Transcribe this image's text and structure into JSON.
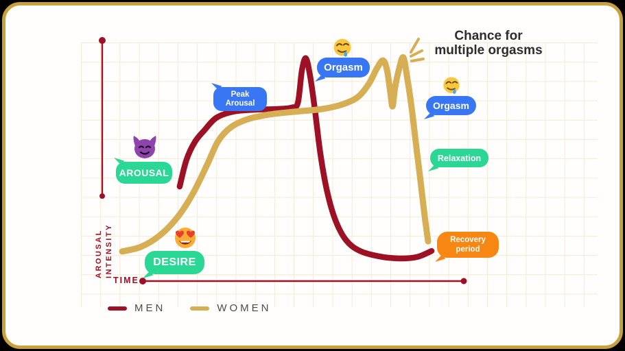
{
  "title": "Chance for multiple orgasms",
  "title_lines": [
    "Chance for",
    "multiple orgasms"
  ],
  "axes": {
    "y_label_lines": [
      "AROUSAL",
      "INTENSITY"
    ],
    "x_label": "TIME"
  },
  "legend": [
    {
      "label": "MEN",
      "color": "#9d1126"
    },
    {
      "label": "WOMEN",
      "color": "#d6ae53"
    }
  ],
  "bubbles": {
    "peak_arousal": {
      "lines": [
        "Peak",
        "Arousal"
      ],
      "color": "#3876f4"
    },
    "orgasm_men": {
      "label": "Orgasm",
      "color": "#3876f4"
    },
    "orgasm_women": {
      "label": "Orgasm",
      "color": "#3876f4"
    },
    "relaxation": {
      "label": "Relaxation",
      "color": "#2bd795"
    },
    "arousal": {
      "label": "AROUSAL",
      "color": "#2bd795"
    },
    "desire": {
      "label": "DESIRE",
      "color": "#2bd795"
    },
    "recovery": {
      "lines": [
        "Recovery",
        "period"
      ],
      "color": "#f78613"
    }
  },
  "icons": [
    "drooling-face-emoji",
    "drooling-face-emoji",
    "devil-face-emoji",
    "heart-eyes-emoji",
    "burst-sparkle"
  ],
  "colors": {
    "men_curve": "#9d1126",
    "women_curve": "#d6ae53",
    "frame_gold": "#c7a13c",
    "grid_line": "#f7e9d3",
    "bubble_blue": "#3876f4",
    "bubble_green": "#2bd795",
    "bubble_orange": "#f78613",
    "title_text": "#2e2d2b",
    "axis_red": "#9d1126"
  },
  "chart_data": {
    "type": "line",
    "title": "Chance for multiple orgasms",
    "xlabel": "TIME",
    "ylabel": "AROUSAL INTENSITY",
    "x_range": [
      0,
      100
    ],
    "y_range": [
      0,
      100
    ],
    "grid": true,
    "legend_position": "bottom-left",
    "series": [
      {
        "key": "men",
        "name": "MEN",
        "color": "#9d1126",
        "points": [
          [
            18.6,
            39.3
          ],
          [
            20.8,
            50.4
          ],
          [
            23.5,
            57.8
          ],
          [
            26.6,
            62.7
          ],
          [
            30.4,
            67.8
          ],
          [
            35.9,
            70.4
          ],
          [
            42.6,
            71.2
          ],
          [
            50.3,
            71.5
          ],
          [
            54.8,
            72.1
          ],
          [
            56.8,
            74.1
          ],
          [
            58.1,
            87.5
          ],
          [
            59.4,
            92.6
          ],
          [
            60.8,
            84.9
          ],
          [
            62.3,
            71.2
          ],
          [
            64.1,
            52.7
          ],
          [
            66.3,
            37.0
          ],
          [
            69.0,
            25.1
          ],
          [
            72.5,
            16.8
          ],
          [
            76.9,
            12.5
          ],
          [
            82.9,
            10.3
          ],
          [
            89.6,
            9.4
          ],
          [
            95.3,
            10.0
          ],
          [
            100.0,
            12.5
          ]
        ]
      },
      {
        "key": "women",
        "name": "WOMEN",
        "color": "#d6ae53",
        "points": [
          [
            0.0,
            12.3
          ],
          [
            6.0,
            14.2
          ],
          [
            12.0,
            18.8
          ],
          [
            17.7,
            26.2
          ],
          [
            22.8,
            36.2
          ],
          [
            27.5,
            48.4
          ],
          [
            31.0,
            58.1
          ],
          [
            35.0,
            63.8
          ],
          [
            40.4,
            67.2
          ],
          [
            47.5,
            69.2
          ],
          [
            55.9,
            70.4
          ],
          [
            64.7,
            71.5
          ],
          [
            71.4,
            73.5
          ],
          [
            76.3,
            76.6
          ],
          [
            79.8,
            82.1
          ],
          [
            82.3,
            88.3
          ],
          [
            84.3,
            91.7
          ],
          [
            85.6,
            87.7
          ],
          [
            86.7,
            78.3
          ],
          [
            87.4,
            72.6
          ],
          [
            88.2,
            80.3
          ],
          [
            89.6,
            88.6
          ],
          [
            90.9,
            92.9
          ],
          [
            92.2,
            84.0
          ],
          [
            93.6,
            71.8
          ],
          [
            95.1,
            55.6
          ],
          [
            96.5,
            41.0
          ],
          [
            97.8,
            26.8
          ],
          [
            98.9,
            16.5
          ]
        ]
      }
    ],
    "annotations": [
      {
        "text": "Peak Arousal",
        "series": "men"
      },
      {
        "text": "Orgasm",
        "series": "men"
      },
      {
        "text": "Orgasm",
        "series": "women"
      },
      {
        "text": "AROUSAL",
        "phase": "shared"
      },
      {
        "text": "DESIRE",
        "phase": "shared"
      },
      {
        "text": "Relaxation",
        "series": "women"
      },
      {
        "text": "Recovery period",
        "series": "men"
      },
      {
        "text": "Chance for multiple orgasms",
        "series": "women"
      }
    ]
  }
}
